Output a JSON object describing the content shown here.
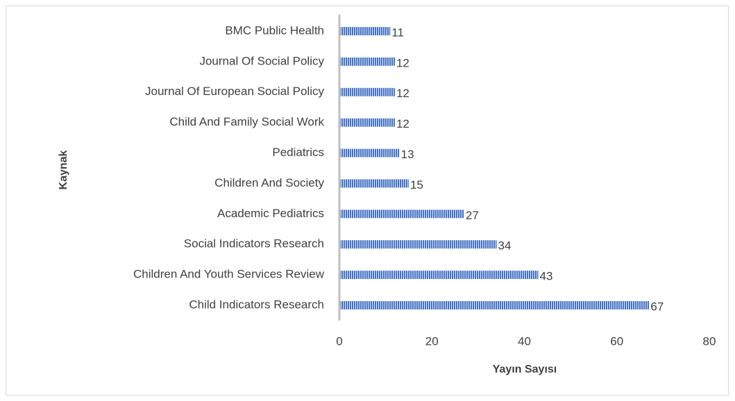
{
  "chart_data": {
    "type": "bar",
    "orientation": "horizontal",
    "x_label": "Yayın Sayısı",
    "y_label": "Kaynak",
    "categories": [
      "BMC Public Health",
      "Journal Of Social Policy",
      "Journal Of European Social Policy",
      "Child And Family Social Work",
      "Pediatrics",
      "Children And Society",
      "Academic Pediatrics",
      "Social Indicators Research",
      "Children And Youth Services Review",
      "Child Indicators Research"
    ],
    "values": [
      11,
      12,
      12,
      12,
      13,
      15,
      27,
      34,
      43,
      67
    ],
    "color": "#4472c4",
    "xlim": [
      0,
      80
    ],
    "xticks": [
      0,
      20,
      40,
      60,
      80
    ],
    "grid": false
  }
}
